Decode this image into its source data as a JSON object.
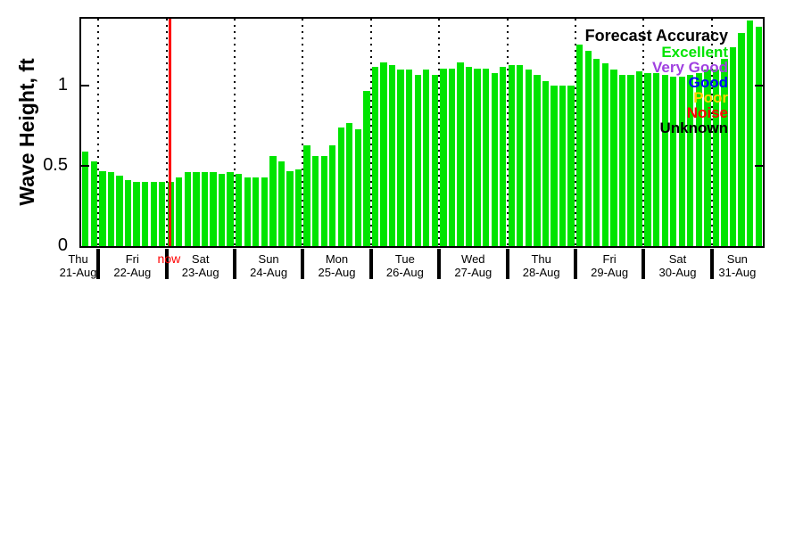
{
  "chart_data": {
    "type": "bar",
    "title": "",
    "ylabel": "Wave Height, ft",
    "xlabel": "",
    "interval_hours": 3,
    "ymax": 1.42,
    "yticks": [
      {
        "label": "0",
        "value": 0
      },
      {
        "label": "0.5",
        "value": 0.5
      },
      {
        "label": "1",
        "value": 1
      }
    ],
    "bar_color": "#00e400",
    "grid": "vertical dotted lines at day boundaries",
    "days": [
      {
        "label": "Thu",
        "date": "21-Aug",
        "values": [
          0.59,
          0.53
        ]
      },
      {
        "label": "Fri",
        "date": "22-Aug",
        "values": [
          0.47,
          0.46,
          0.44,
          0.41,
          0.4,
          0.4,
          0.4,
          0.4
        ]
      },
      {
        "label": "Sat",
        "date": "23-Aug",
        "values": [
          0.4,
          0.43,
          0.46,
          0.46,
          0.46,
          0.46,
          0.45,
          0.46
        ]
      },
      {
        "label": "Sun",
        "date": "24-Aug",
        "values": [
          0.45,
          0.43,
          0.43,
          0.43,
          0.56,
          0.53,
          0.47,
          0.48
        ]
      },
      {
        "label": "Mon",
        "date": "25-Aug",
        "values": [
          0.63,
          0.56,
          0.56,
          0.63,
          0.74,
          0.77,
          0.73,
          0.97
        ]
      },
      {
        "label": "Tue",
        "date": "26-Aug",
        "values": [
          1.12,
          1.15,
          1.13,
          1.1,
          1.1,
          1.07,
          1.1,
          1.07
        ]
      },
      {
        "label": "Wed",
        "date": "27-Aug",
        "values": [
          1.11,
          1.11,
          1.15,
          1.12,
          1.11,
          1.11,
          1.08,
          1.12
        ]
      },
      {
        "label": "Thu",
        "date": "28-Aug",
        "values": [
          1.13,
          1.13,
          1.1,
          1.07,
          1.03,
          1.0,
          1.0,
          1.0
        ]
      },
      {
        "label": "Fri",
        "date": "29-Aug",
        "values": [
          1.26,
          1.22,
          1.17,
          1.14,
          1.1,
          1.07,
          1.07,
          1.09
        ]
      },
      {
        "label": "Sat",
        "date": "30-Aug",
        "values": [
          1.08,
          1.08,
          1.07,
          1.06,
          1.06,
          1.07,
          1.08,
          1.1
        ]
      },
      {
        "label": "Sun",
        "date": "31-Aug",
        "values": [
          1.1,
          1.17,
          1.24,
          1.33,
          1.41,
          1.37
        ]
      }
    ],
    "now_marker": {
      "label": "now",
      "slot": 10.3,
      "color": "#ff0000"
    },
    "legend": {
      "title": "Forecast Accuracy",
      "position": "top-right",
      "entries": [
        {
          "label": "Excellent",
          "color": "#00e400"
        },
        {
          "label": "Very Good",
          "color": "#a040e0"
        },
        {
          "label": "Good",
          "color": "#0000ff"
        },
        {
          "label": "Poor",
          "color": "#ffd700"
        },
        {
          "label": "Noise",
          "color": "#ff0000"
        },
        {
          "label": "Unknown",
          "color": "#000000"
        }
      ]
    }
  }
}
